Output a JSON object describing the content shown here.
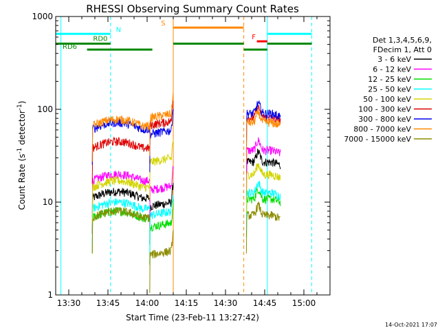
{
  "colors": {
    "k3_6": "#000000",
    "k6_12": "#ff00ff",
    "k12_25": "#00dd00",
    "k25_50": "#00ffff",
    "k50_100": "#d4d400",
    "k100_300": "#dd0000",
    "k300_800": "#0000ee",
    "k800_7000": "#ff8800",
    "k7000_15000": "#8b8b00",
    "attenuator": "#00ffff",
    "decimation": "#008800",
    "saa": "#ff8800",
    "flare": "#ff0000"
  },
  "chart_data": {
    "type": "line",
    "title": "RHESSI Observing Summary Count Rates",
    "xlabel": "Start Time (23-Feb-11 13:27:42)",
    "ylabel_parts": {
      "main": "Count Rate (s",
      "sup1": "-1",
      "mid": " detector",
      "sup2": "-1",
      "end": ")"
    },
    "y_scale": "log",
    "ylim": [
      1,
      1000
    ],
    "xlim": [
      "13:25",
      "15:10"
    ],
    "x_ticks": [
      "13:30",
      "13:45",
      "14:00",
      "14:15",
      "14:30",
      "14:45",
      "15:00"
    ],
    "y_ticks": [
      "1",
      "10",
      "100",
      "1000"
    ],
    "stamp": "14-Oct-2021 17:07",
    "legend": {
      "header": [
        "Det 1,3,4,5,6,9,",
        "FDecim 1, Att 0"
      ],
      "entries": [
        {
          "label": "3 - 6 keV",
          "color_key": "k3_6"
        },
        {
          "label": "6 - 12 keV",
          "color_key": "k6_12"
        },
        {
          "label": "12 - 25 keV",
          "color_key": "k12_25"
        },
        {
          "label": "25 - 50 keV",
          "color_key": "k25_50"
        },
        {
          "label": "50 - 100 keV",
          "color_key": "k50_100"
        },
        {
          "label": "100 - 300 keV",
          "color_key": "k100_300"
        },
        {
          "label": "300 - 800 keV",
          "color_key": "k300_800"
        },
        {
          "label": "800 - 7000 keV",
          "color_key": "k800_7000"
        },
        {
          "label": "7000 - 15000 keV",
          "color_key": "k7000_15000"
        }
      ]
    },
    "annotations": {
      "n": "N",
      "rd0": "RD0",
      "rd6": "RD6",
      "s": "S",
      "f": "F"
    },
    "vlines": [
      {
        "x": "13:27",
        "color_key": "attenuator",
        "style": "solid"
      },
      {
        "x": "13:46",
        "color_key": "attenuator",
        "style": "dashed"
      },
      {
        "x": "14:10",
        "color_key": "saa",
        "style": "solid"
      },
      {
        "x": "14:37",
        "color_key": "saa",
        "style": "dashed"
      },
      {
        "x": "14:46",
        "color_key": "attenuator",
        "style": "solid"
      },
      {
        "x": "15:03",
        "color_key": "attenuator",
        "style": "dashed"
      }
    ],
    "flag_bars": [
      {
        "name": "night",
        "color_key": "attenuator",
        "y": 650,
        "segments": [
          [
            "13:25",
            "13:46"
          ],
          [
            "14:46",
            "15:03"
          ]
        ]
      },
      {
        "name": "saa",
        "color_key": "saa",
        "y": 760,
        "segments": [
          [
            "14:10",
            "14:37"
          ]
        ]
      },
      {
        "name": "flare",
        "color_key": "flare",
        "y": 540,
        "segments": [
          [
            "14:42",
            "14:46"
          ]
        ]
      },
      {
        "name": "decim-upper",
        "color_key": "decimation",
        "y": 510,
        "segments": [
          [
            "13:25",
            "13:46"
          ],
          [
            "14:10",
            "14:37"
          ],
          [
            "14:46",
            "15:03"
          ]
        ]
      },
      {
        "name": "decim-lower",
        "color_key": "decimation",
        "y": 440,
        "segments": [
          [
            "13:37",
            "14:02"
          ],
          [
            "14:37",
            "14:46"
          ]
        ]
      }
    ],
    "segments": [
      {
        "start": "13:39",
        "end": "14:01",
        "scale": "dome"
      },
      {
        "start": "14:01",
        "end": "14:10",
        "scale": "rise"
      },
      {
        "start": "14:38",
        "end": "14:51",
        "scale": "flare"
      }
    ],
    "series": [
      {
        "name": "3 - 6 keV",
        "color_key": "k3_6",
        "levels": [
          13,
          10,
          30
        ]
      },
      {
        "name": "6 - 12 keV",
        "color_key": "k6_12",
        "levels": [
          20,
          15,
          40
        ]
      },
      {
        "name": "12 - 25 keV",
        "color_key": "k12_25",
        "levels": [
          8,
          6,
          12
        ]
      },
      {
        "name": "25 - 50 keV",
        "color_key": "k25_50",
        "levels": [
          10,
          8,
          14
        ]
      },
      {
        "name": "50 - 100 keV",
        "color_key": "k50_100",
        "levels": [
          17,
          30,
          22
        ]
      },
      {
        "name": "100 - 300 keV",
        "color_key": "k100_300",
        "levels": [
          45,
          75,
          90
        ]
      },
      {
        "name": "300 - 800 keV",
        "color_key": "k300_800",
        "levels": [
          72,
          60,
          100
        ]
      },
      {
        "name": "800 - 7000 keV",
        "color_key": "k800_7000",
        "levels": [
          78,
          90,
          80
        ]
      },
      {
        "name": "7000 - 15000 keV",
        "color_key": "k7000_15000",
        "levels": [
          8,
          3,
          8
        ]
      }
    ]
  }
}
